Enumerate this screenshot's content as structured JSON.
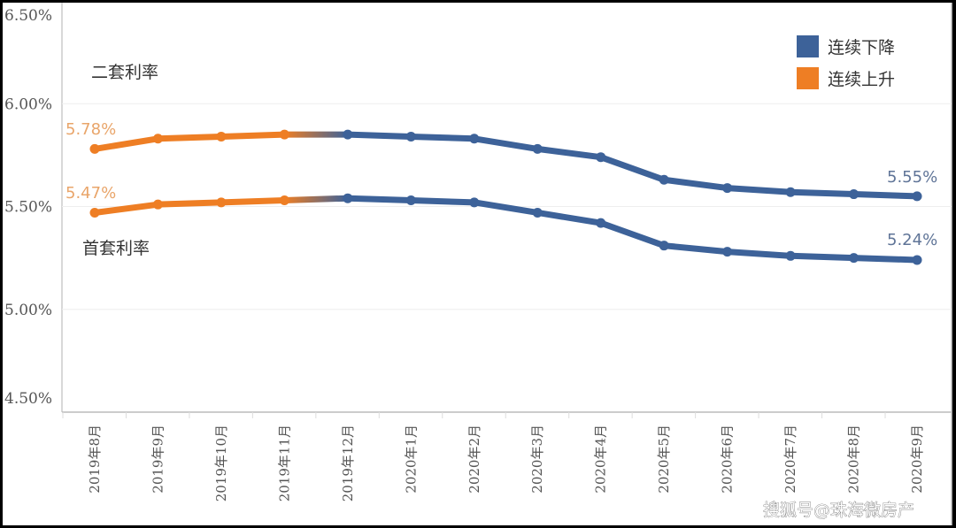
{
  "chart_data": {
    "type": "line",
    "title": "",
    "xlabel": "",
    "ylabel": "",
    "ylim": [
      4.5,
      6.5
    ],
    "yticks": [
      "6.50%",
      "6.00%",
      "5.50%",
      "5.00%",
      "4.50%"
    ],
    "ytick_values": [
      6.5,
      6.0,
      5.5,
      5.0,
      4.5
    ],
    "grid": "horizontal",
    "legend_position": "top-right",
    "categories": [
      "2019年8月",
      "2019年9月",
      "2019年10月",
      "2019年11月",
      "2019年12月",
      "2020年1月",
      "2020年2月",
      "2020年3月",
      "2020年4月",
      "2020年5月",
      "2020年6月",
      "2020年7月",
      "2020年8月",
      "2020年9月"
    ],
    "series": [
      {
        "name": "二套利率",
        "values": [
          5.78,
          5.83,
          5.84,
          5.85,
          5.85,
          5.84,
          5.83,
          5.78,
          5.74,
          5.63,
          5.59,
          5.57,
          5.56,
          5.55
        ]
      },
      {
        "name": "首套利率",
        "values": [
          5.47,
          5.51,
          5.52,
          5.53,
          5.54,
          5.53,
          5.52,
          5.47,
          5.42,
          5.31,
          5.28,
          5.26,
          5.25,
          5.24
        ]
      }
    ],
    "rising_until_index": 4,
    "legend": [
      {
        "label": "连续下降",
        "color": "#3d6299"
      },
      {
        "label": "连续上升",
        "color": "#ee7e24"
      }
    ],
    "annotations": {
      "second_start": "5.78%",
      "first_start": "5.47%",
      "second_end": "5.55%",
      "first_end": "5.24%"
    }
  },
  "watermark": "搜狐号@珠海微房产"
}
